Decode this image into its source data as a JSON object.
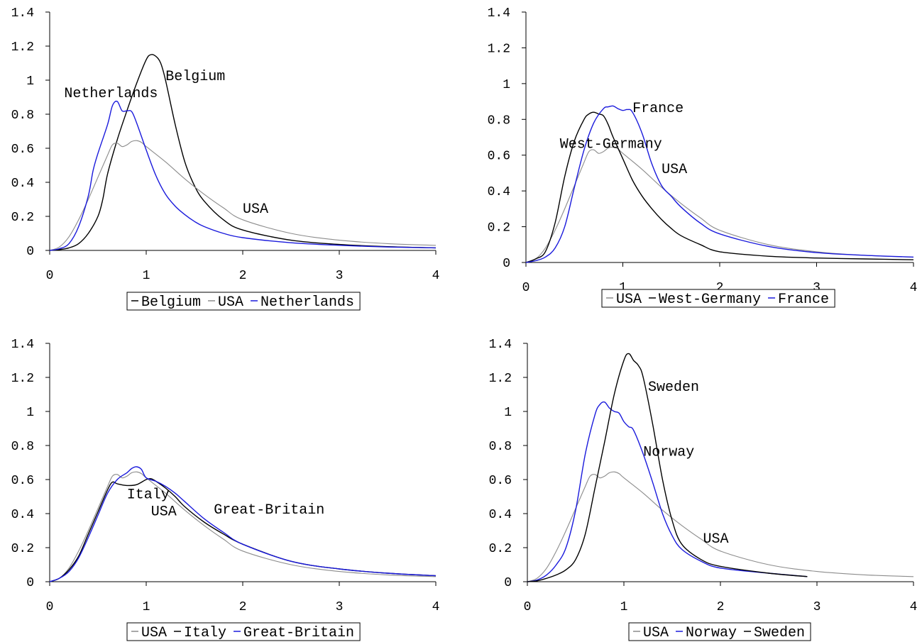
{
  "colors": {
    "black": "#000000",
    "gray": "#8c8c8c",
    "blue": "#1a1adc"
  },
  "chart_data": [
    {
      "type": "line",
      "title": "",
      "xlabel": "",
      "ylabel": "",
      "xlim": [
        0,
        4
      ],
      "ylim": [
        0,
        1.4
      ],
      "xticks": [
        "0",
        "1",
        "2",
        "3",
        "4"
      ],
      "yticks": [
        "0",
        "0.2",
        "0.4",
        "0.6",
        "0.8",
        "1",
        "1.2",
        "1.4"
      ],
      "grid": false,
      "legend_position": "bottom",
      "series": [
        {
          "name": "Belgium",
          "color": "black",
          "x": [
            0,
            0.1,
            0.2,
            0.3,
            0.4,
            0.5,
            0.55,
            0.6,
            0.7,
            0.8,
            0.9,
            1.0,
            1.05,
            1.1,
            1.15,
            1.2,
            1.3,
            1.4,
            1.5,
            1.6,
            1.8,
            2.0,
            2.5,
            3.0,
            3.5,
            4.0
          ],
          "y": [
            0,
            0.005,
            0.015,
            0.04,
            0.1,
            0.2,
            0.3,
            0.45,
            0.65,
            0.82,
            0.98,
            1.12,
            1.15,
            1.14,
            1.1,
            1.0,
            0.74,
            0.52,
            0.38,
            0.29,
            0.18,
            0.12,
            0.06,
            0.035,
            0.022,
            0.015
          ]
        },
        {
          "name": "USA",
          "color": "gray",
          "x": [
            0,
            0.1,
            0.2,
            0.3,
            0.4,
            0.5,
            0.6,
            0.65,
            0.7,
            0.75,
            0.8,
            0.85,
            0.9,
            0.95,
            1.0,
            1.2,
            1.4,
            1.6,
            1.8,
            2.0,
            2.5,
            3.0,
            3.5,
            4.0
          ],
          "y": [
            0,
            0.02,
            0.08,
            0.18,
            0.3,
            0.43,
            0.56,
            0.62,
            0.63,
            0.61,
            0.62,
            0.64,
            0.645,
            0.635,
            0.61,
            0.52,
            0.42,
            0.33,
            0.25,
            0.18,
            0.1,
            0.06,
            0.04,
            0.03
          ]
        },
        {
          "name": "Netherlands",
          "color": "blue",
          "x": [
            0,
            0.1,
            0.2,
            0.3,
            0.4,
            0.45,
            0.5,
            0.6,
            0.65,
            0.7,
            0.75,
            0.8,
            0.85,
            0.9,
            1.0,
            1.1,
            1.2,
            1.3,
            1.4,
            1.5,
            1.6,
            1.8,
            2.0,
            2.5,
            3.0,
            3.5,
            4.0
          ],
          "y": [
            0,
            0.01,
            0.04,
            0.14,
            0.32,
            0.47,
            0.57,
            0.74,
            0.85,
            0.875,
            0.82,
            0.82,
            0.815,
            0.75,
            0.59,
            0.44,
            0.33,
            0.26,
            0.21,
            0.17,
            0.14,
            0.1,
            0.075,
            0.045,
            0.03,
            0.02,
            0.015
          ]
        }
      ],
      "annotations": [
        {
          "text": "Belgium",
          "x": 1.2,
          "y": 1.0
        },
        {
          "text": "Netherlands",
          "x": 0.15,
          "y": 0.9
        },
        {
          "text": "USA",
          "x": 2.0,
          "y": 0.22
        }
      ],
      "legend": [
        {
          "label": "Belgium",
          "color": "black"
        },
        {
          "label": "USA",
          "color": "gray"
        },
        {
          "label": "Netherlands",
          "color": "blue"
        }
      ]
    },
    {
      "type": "line",
      "title": "",
      "xlabel": "",
      "ylabel": "",
      "xlim": [
        0,
        4
      ],
      "ylim": [
        0,
        1.4
      ],
      "xticks": [
        "0",
        "1",
        "2",
        "3",
        "4"
      ],
      "yticks": [
        "0",
        "0.2",
        "0.4",
        "0.6",
        "0.8",
        "1",
        "1.2",
        "1.4"
      ],
      "grid": false,
      "legend_position": "bottom",
      "series": [
        {
          "name": "USA",
          "color": "gray",
          "x": [
            0,
            0.1,
            0.2,
            0.3,
            0.4,
            0.5,
            0.6,
            0.65,
            0.7,
            0.75,
            0.8,
            0.85,
            0.9,
            0.95,
            1.0,
            1.2,
            1.4,
            1.6,
            1.8,
            2.0,
            2.5,
            3.0,
            3.5,
            4.0
          ],
          "y": [
            0,
            0.02,
            0.08,
            0.18,
            0.3,
            0.43,
            0.56,
            0.62,
            0.63,
            0.61,
            0.62,
            0.64,
            0.645,
            0.635,
            0.61,
            0.52,
            0.42,
            0.33,
            0.25,
            0.18,
            0.1,
            0.06,
            0.04,
            0.03
          ]
        },
        {
          "name": "West-Germany",
          "color": "black",
          "x": [
            0,
            0.1,
            0.2,
            0.3,
            0.4,
            0.5,
            0.6,
            0.65,
            0.7,
            0.75,
            0.8,
            0.85,
            0.9,
            1.0,
            1.1,
            1.2,
            1.3,
            1.4,
            1.5,
            1.6,
            1.8,
            2.0,
            2.5,
            3.0,
            3.5,
            4.0
          ],
          "y": [
            0,
            0.02,
            0.06,
            0.22,
            0.48,
            0.68,
            0.8,
            0.83,
            0.84,
            0.83,
            0.82,
            0.77,
            0.7,
            0.58,
            0.46,
            0.37,
            0.3,
            0.24,
            0.19,
            0.15,
            0.1,
            0.06,
            0.035,
            0.025,
            0.02,
            0.015
          ]
        },
        {
          "name": "France",
          "color": "blue",
          "x": [
            0,
            0.1,
            0.2,
            0.3,
            0.4,
            0.5,
            0.6,
            0.7,
            0.8,
            0.85,
            0.9,
            0.95,
            1.0,
            1.05,
            1.1,
            1.2,
            1.3,
            1.4,
            1.5,
            1.6,
            1.8,
            2.0,
            2.5,
            3.0,
            3.5,
            4.0
          ],
          "y": [
            0,
            0.01,
            0.03,
            0.08,
            0.2,
            0.42,
            0.63,
            0.78,
            0.86,
            0.87,
            0.875,
            0.86,
            0.85,
            0.855,
            0.84,
            0.72,
            0.55,
            0.43,
            0.37,
            0.31,
            0.22,
            0.16,
            0.09,
            0.055,
            0.04,
            0.03
          ]
        }
      ],
      "annotations": [
        {
          "text": "France",
          "x": 1.1,
          "y": 0.84
        },
        {
          "text": "West-Germany",
          "x": 0.35,
          "y": 0.64
        },
        {
          "text": "USA",
          "x": 1.4,
          "y": 0.5
        }
      ],
      "legend": [
        {
          "label": "USA",
          "color": "gray"
        },
        {
          "label": "West-Germany",
          "color": "black"
        },
        {
          "label": "France",
          "color": "blue"
        }
      ]
    },
    {
      "type": "line",
      "title": "",
      "xlabel": "",
      "ylabel": "",
      "xlim": [
        0,
        4
      ],
      "ylim": [
        0,
        1.4
      ],
      "xticks": [
        "0",
        "1",
        "2",
        "3",
        "4"
      ],
      "yticks": [
        "0",
        "0.2",
        "0.4",
        "0.6",
        "0.8",
        "1",
        "1.2",
        "1.4"
      ],
      "grid": false,
      "legend_position": "bottom",
      "series": [
        {
          "name": "USA",
          "color": "gray",
          "x": [
            0,
            0.1,
            0.2,
            0.3,
            0.4,
            0.5,
            0.6,
            0.65,
            0.7,
            0.75,
            0.8,
            0.85,
            0.9,
            0.95,
            1.0,
            1.2,
            1.4,
            1.6,
            1.8,
            2.0,
            2.5,
            3.0,
            3.5,
            4.0
          ],
          "y": [
            0,
            0.02,
            0.08,
            0.18,
            0.3,
            0.43,
            0.56,
            0.62,
            0.63,
            0.61,
            0.62,
            0.64,
            0.645,
            0.635,
            0.61,
            0.52,
            0.42,
            0.33,
            0.25,
            0.18,
            0.1,
            0.06,
            0.04,
            0.03
          ]
        },
        {
          "name": "Italy",
          "color": "black",
          "x": [
            0,
            0.1,
            0.2,
            0.3,
            0.4,
            0.5,
            0.6,
            0.65,
            0.7,
            0.8,
            0.9,
            1.0,
            1.05,
            1.1,
            1.2,
            1.3,
            1.4,
            1.6,
            1.8,
            2.0,
            2.5,
            3.0,
            3.5,
            4.0
          ],
          "y": [
            0,
            0.02,
            0.07,
            0.15,
            0.28,
            0.41,
            0.54,
            0.585,
            0.575,
            0.565,
            0.57,
            0.6,
            0.605,
            0.59,
            0.55,
            0.5,
            0.44,
            0.35,
            0.28,
            0.22,
            0.12,
            0.075,
            0.05,
            0.035
          ]
        },
        {
          "name": "Great-Britain",
          "color": "blue",
          "x": [
            0,
            0.1,
            0.2,
            0.3,
            0.4,
            0.5,
            0.6,
            0.7,
            0.8,
            0.85,
            0.9,
            0.95,
            1.0,
            1.1,
            1.2,
            1.3,
            1.4,
            1.6,
            1.8,
            2.0,
            2.5,
            3.0,
            3.5,
            4.0
          ],
          "y": [
            0,
            0.02,
            0.06,
            0.14,
            0.26,
            0.39,
            0.52,
            0.6,
            0.64,
            0.665,
            0.675,
            0.66,
            0.61,
            0.59,
            0.56,
            0.52,
            0.47,
            0.37,
            0.29,
            0.22,
            0.12,
            0.075,
            0.05,
            0.035
          ]
        }
      ],
      "annotations": [
        {
          "text": "Italy",
          "x": 0.8,
          "y": 0.49
        },
        {
          "text": "USA",
          "x": 1.05,
          "y": 0.39
        },
        {
          "text": "Great-Britain",
          "x": 1.7,
          "y": 0.4
        }
      ],
      "legend": [
        {
          "label": "USA",
          "color": "gray"
        },
        {
          "label": "Italy",
          "color": "black"
        },
        {
          "label": "Great-Britain",
          "color": "blue"
        }
      ]
    },
    {
      "type": "line",
      "title": "",
      "xlabel": "",
      "ylabel": "",
      "xlim": [
        0,
        4
      ],
      "ylim": [
        0,
        1.4
      ],
      "xticks": [
        "0",
        "1",
        "2",
        "3",
        "4"
      ],
      "yticks": [
        "0",
        "0.2",
        "0.4",
        "0.6",
        "0.8",
        "1",
        "1.2",
        "1.4"
      ],
      "grid": false,
      "legend_position": "bottom",
      "series": [
        {
          "name": "USA",
          "color": "gray",
          "x": [
            0,
            0.1,
            0.2,
            0.3,
            0.4,
            0.5,
            0.6,
            0.65,
            0.7,
            0.75,
            0.8,
            0.85,
            0.9,
            0.95,
            1.0,
            1.2,
            1.4,
            1.6,
            1.8,
            2.0,
            2.5,
            3.0,
            3.5,
            4.0
          ],
          "y": [
            0,
            0.02,
            0.08,
            0.18,
            0.3,
            0.43,
            0.56,
            0.62,
            0.63,
            0.61,
            0.62,
            0.64,
            0.645,
            0.635,
            0.61,
            0.52,
            0.42,
            0.33,
            0.25,
            0.18,
            0.1,
            0.06,
            0.04,
            0.03
          ]
        },
        {
          "name": "Norway",
          "color": "blue",
          "x": [
            0,
            0.1,
            0.2,
            0.3,
            0.4,
            0.5,
            0.6,
            0.7,
            0.75,
            0.8,
            0.85,
            0.9,
            0.95,
            1.0,
            1.05,
            1.1,
            1.2,
            1.3,
            1.4,
            1.5,
            1.6,
            1.8,
            2.0,
            2.5,
            2.9
          ],
          "y": [
            0,
            0.01,
            0.04,
            0.1,
            0.2,
            0.42,
            0.75,
            0.98,
            1.04,
            1.055,
            1.02,
            1.0,
            0.99,
            0.94,
            0.91,
            0.89,
            0.75,
            0.58,
            0.4,
            0.27,
            0.19,
            0.12,
            0.08,
            0.05,
            0.03
          ]
        },
        {
          "name": "Sweden",
          "color": "black",
          "x": [
            0,
            0.1,
            0.2,
            0.3,
            0.4,
            0.5,
            0.6,
            0.7,
            0.8,
            0.9,
            1.0,
            1.05,
            1.1,
            1.15,
            1.2,
            1.3,
            1.4,
            1.5,
            1.6,
            1.8,
            2.0,
            2.5,
            2.9
          ],
          "y": [
            0,
            0.005,
            0.02,
            0.04,
            0.07,
            0.13,
            0.28,
            0.55,
            0.82,
            1.1,
            1.3,
            1.34,
            1.3,
            1.27,
            1.2,
            0.92,
            0.6,
            0.36,
            0.22,
            0.13,
            0.09,
            0.05,
            0.03
          ]
        }
      ],
      "annotations": [
        {
          "text": "Sweden",
          "x": 1.25,
          "y": 1.12
        },
        {
          "text": "Norway",
          "x": 1.2,
          "y": 0.74
        },
        {
          "text": "USA",
          "x": 1.82,
          "y": 0.23
        }
      ],
      "legend": [
        {
          "label": "USA",
          "color": "gray"
        },
        {
          "label": "Norway",
          "color": "blue"
        },
        {
          "label": "Sweden",
          "color": "black"
        }
      ]
    }
  ]
}
